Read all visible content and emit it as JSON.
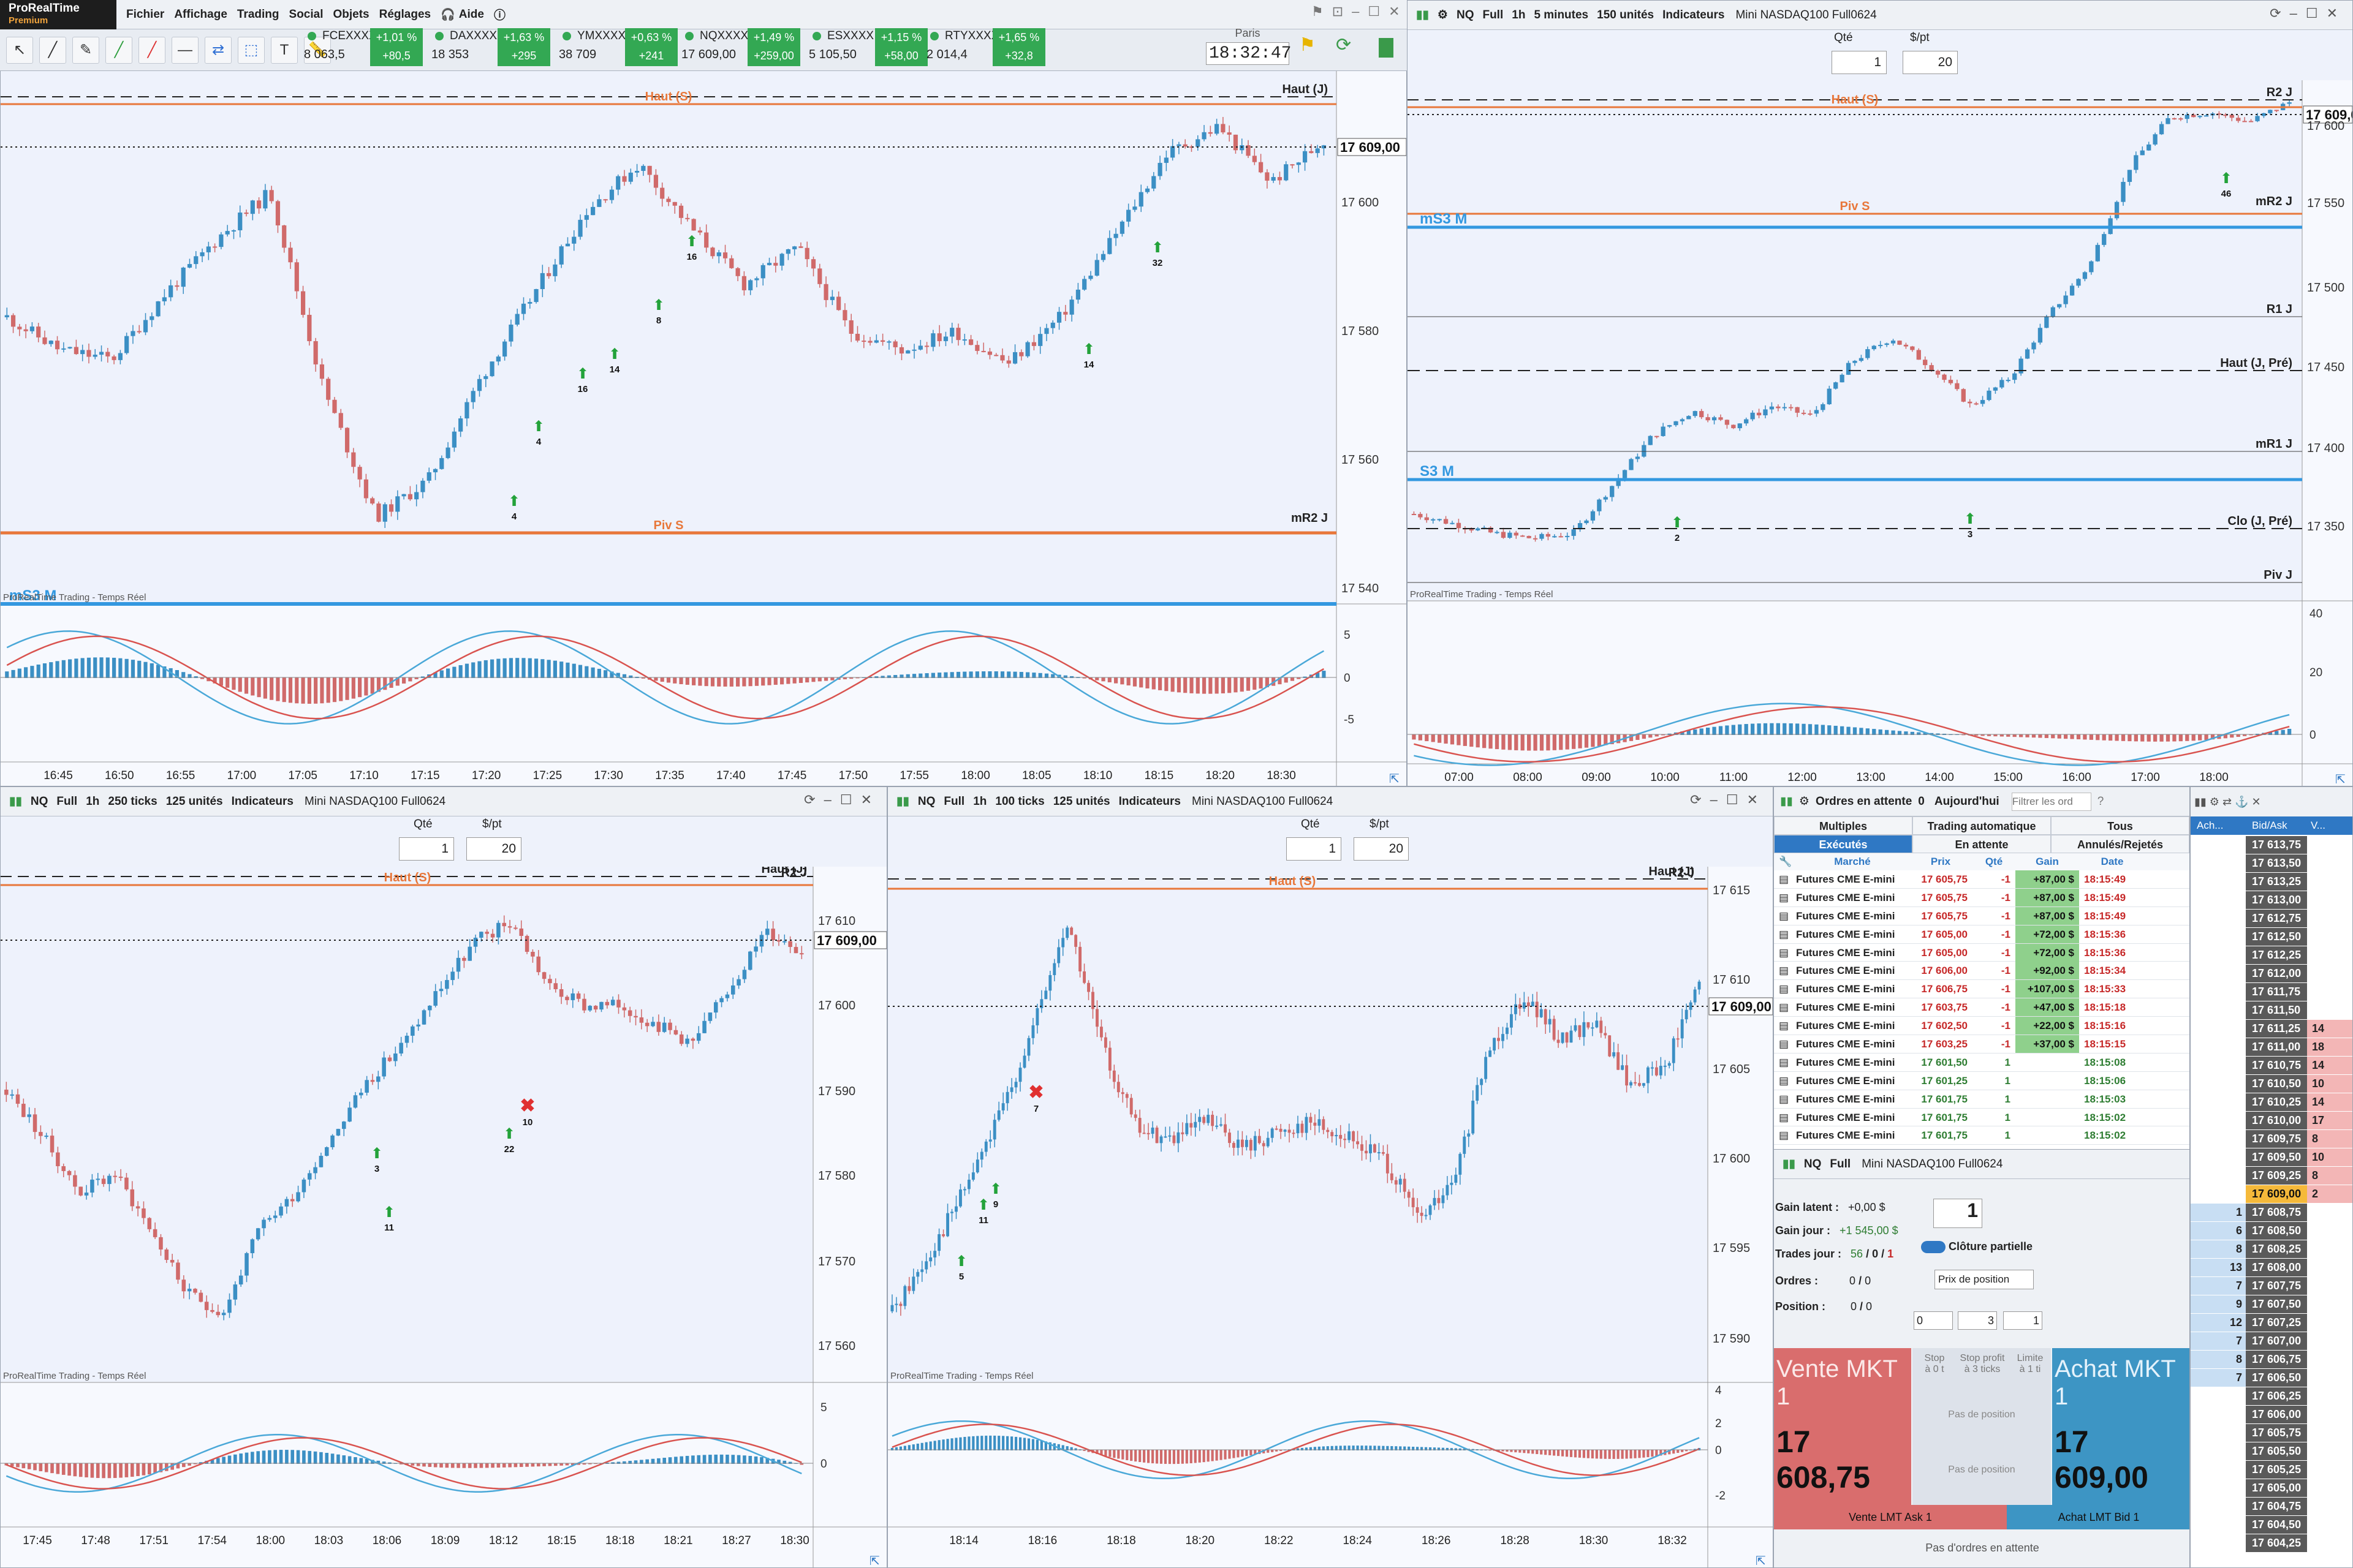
{
  "app": {
    "name": "ProRealTime",
    "edition": "Premium"
  },
  "menu": [
    "Fichier",
    "Affichage",
    "Trading",
    "Social",
    "Objets",
    "Réglages",
    "Aide"
  ],
  "tickers": [
    {
      "name": "FCEXXXX",
      "price": "8 063,5",
      "pct": "+1,01 %",
      "chg": "+80,5"
    },
    {
      "name": "DAXXXXX",
      "price": "18 353",
      "pct": "+1,63 %",
      "chg": "+295"
    },
    {
      "name": "YMXXXX",
      "price": "38 709",
      "pct": "+0,63 %",
      "chg": "+241"
    },
    {
      "name": "NQXXXX",
      "price": "17 609,00",
      "pct": "+1,49 %",
      "chg": "+259,00"
    },
    {
      "name": "ESXXXX",
      "price": "5 105,50",
      "pct": "+1,15 %",
      "chg": "+58,00"
    },
    {
      "name": "RTYXXXX",
      "price": "2 014,4",
      "pct": "+1,65 %",
      "chg": "+32,8"
    }
  ],
  "clock": {
    "city": "Paris",
    "time": "18:32:47"
  },
  "colors": {
    "up": "#3b8fc4",
    "down": "#d06a6a",
    "orange": "#e8773a",
    "blue_level": "#3398e0",
    "gain_bg": "#8fd08c"
  },
  "common": {
    "qty_label": "Qté",
    "pt_label": "$/pt",
    "qty": "1",
    "pt": "20",
    "indicators": "Indicateurs",
    "symbol": "NQ",
    "full": "Full",
    "h1": "1h",
    "instrument": "Mini NASDAQ100 Full0624",
    "watermark": "ProRealTime Trading - Temps Réel",
    "last_price": "17 609,00",
    "haut_s": "Haut (S)",
    "haut_j": "Haut (J)",
    "r2j": "R2 J"
  },
  "chart_main": {
    "levels": {
      "piv_s": "Piv S",
      "mr2j": "mR2 J",
      "ms3m": "mS3 M"
    },
    "yticks": [
      "17 600",
      "17 580",
      "17 560",
      "17 540"
    ],
    "macd_ticks": [
      "5",
      "0",
      "-5"
    ],
    "xticks": [
      "16:45",
      "16:50",
      "16:55",
      "17:00",
      "17:05",
      "17:10",
      "17:15",
      "17:20",
      "17:25",
      "17:30",
      "17:35",
      "17:40",
      "17:45",
      "17:50",
      "17:55",
      "18:00",
      "18:05",
      "18:10",
      "18:15",
      "18:20",
      "18:30"
    ],
    "markers": [
      "4",
      "4",
      "16",
      "14",
      "8",
      "16",
      "14",
      "32"
    ]
  },
  "chart_right": {
    "header": {
      "interval": "5 minutes",
      "units": "150 unités"
    },
    "levels": {
      "r2j": "R2 J",
      "mr2j": "mR2 J",
      "piv_s": "Piv S",
      "ms3m": "mS3 M",
      "r1j": "R1 J",
      "haut_pre": "Haut (J, Pré)",
      "mr1j": "mR1 J",
      "s3m": "S3 M",
      "clo_pre": "Clo (J, Pré)",
      "piv_j": "Piv J"
    },
    "yticks": [
      "17 600",
      "17 550",
      "17 500",
      "17 450",
      "17 400",
      "17 350"
    ],
    "macd_ticks": [
      "40",
      "20",
      "0"
    ],
    "xticks": [
      "07:00",
      "08:00",
      "09:00",
      "10:00",
      "11:00",
      "12:00",
      "13:00",
      "14:00",
      "15:00",
      "16:00",
      "17:00",
      "18:00"
    ],
    "markers": [
      "2",
      "3",
      "46"
    ]
  },
  "chart_bl": {
    "header": {
      "ticks": "250 ticks",
      "units": "125 unités"
    },
    "yticks": [
      "17 610",
      "17 600",
      "17 590",
      "17 580",
      "17 570",
      "17 560"
    ],
    "macd_ticks": [
      "5",
      "0"
    ],
    "xticks": [
      "17:45",
      "17:48",
      "17:51",
      "17:54",
      "18:00",
      "18:03",
      "18:06",
      "18:09",
      "18:12",
      "18:15",
      "18:18",
      "18:21",
      "18:27",
      "18:30"
    ],
    "markers": [
      "3",
      "11",
      "22",
      "10"
    ]
  },
  "chart_bm": {
    "header": {
      "ticks": "100 ticks",
      "units": "125 unités"
    },
    "yticks": [
      "17 615",
      "17 610",
      "17 605",
      "17 600",
      "17 595",
      "17 590"
    ],
    "macd_ticks": [
      "4",
      "2",
      "0",
      "-2"
    ],
    "xticks": [
      "18:14",
      "18:16",
      "18:18",
      "18:20",
      "18:22",
      "18:24",
      "18:26",
      "18:28",
      "18:30",
      "18:32"
    ],
    "markers": [
      "5",
      "11",
      "9",
      "7"
    ]
  },
  "orders": {
    "title": "Ordres en attente",
    "pending_count": "0",
    "filter": "Aujourd'hui",
    "search_placeholder": "Filtrer les ord",
    "tabs_top": [
      "Multiples",
      "Trading automatique",
      "Tous"
    ],
    "tabs": [
      "Exécutés",
      "En attente",
      "Annulés/Rejetés"
    ],
    "columns": [
      "Marché",
      "Prix",
      "Qté",
      "Gain",
      "Date"
    ],
    "rows": [
      {
        "m": "Futures CME E-mini",
        "p": "17 605,75",
        "q": "-1",
        "g": "+87,00 $",
        "d": "18:15:49"
      },
      {
        "m": "Futures CME E-mini",
        "p": "17 605,75",
        "q": "-1",
        "g": "+87,00 $",
        "d": "18:15:49"
      },
      {
        "m": "Futures CME E-mini",
        "p": "17 605,75",
        "q": "-1",
        "g": "+87,00 $",
        "d": "18:15:49"
      },
      {
        "m": "Futures CME E-mini",
        "p": "17 605,00",
        "q": "-1",
        "g": "+72,00 $",
        "d": "18:15:36"
      },
      {
        "m": "Futures CME E-mini",
        "p": "17 605,00",
        "q": "-1",
        "g": "+72,00 $",
        "d": "18:15:36"
      },
      {
        "m": "Futures CME E-mini",
        "p": "17 606,00",
        "q": "-1",
        "g": "+92,00 $",
        "d": "18:15:34"
      },
      {
        "m": "Futures CME E-mini",
        "p": "17 606,75",
        "q": "-1",
        "g": "+107,00 $",
        "d": "18:15:33"
      },
      {
        "m": "Futures CME E-mini",
        "p": "17 603,75",
        "q": "-1",
        "g": "+47,00 $",
        "d": "18:15:18"
      },
      {
        "m": "Futures CME E-mini",
        "p": "17 602,50",
        "q": "-1",
        "g": "+22,00 $",
        "d": "18:15:16"
      },
      {
        "m": "Futures CME E-mini",
        "p": "17 603,25",
        "q": "-1",
        "g": "+37,00 $",
        "d": "18:15:15"
      },
      {
        "m": "Futures CME E-mini",
        "p": "17 601,50",
        "q": "1",
        "g": "",
        "d": "18:15:08"
      },
      {
        "m": "Futures CME E-mini",
        "p": "17 601,25",
        "q": "1",
        "g": "",
        "d": "18:15:06"
      },
      {
        "m": "Futures CME E-mini",
        "p": "17 601,75",
        "q": "1",
        "g": "",
        "d": "18:15:03"
      },
      {
        "m": "Futures CME E-mini",
        "p": "17 601,75",
        "q": "1",
        "g": "",
        "d": "18:15:02"
      },
      {
        "m": "Futures CME E-mini",
        "p": "17 601,75",
        "q": "1",
        "g": "",
        "d": "18:15:02"
      }
    ]
  },
  "trade": {
    "gain_latent_label": "Gain latent :",
    "gain_latent": "+0,00 $",
    "gain_jour_label": "Gain jour :",
    "gain_jour": "+1 545,00 $",
    "trades_label": "Trades jour :",
    "trades_a": "56",
    "trades_b": "0",
    "trades_c": "1",
    "ordres_label": "Ordres :",
    "ordres": "0",
    "ordres_b": "0",
    "position_label": "Position :",
    "position": "0",
    "position_b": "0",
    "qty": "1",
    "cloture": "Clôture partielle",
    "prix_pos": "Prix de position",
    "vals": [
      "0",
      "3",
      "1"
    ],
    "sell_label": "Vente MKT 1",
    "sell_price": "17 608,75",
    "buy_label": "Achat MKT 1",
    "buy_price": "17 609,00",
    "stop": "Stop",
    "stop_sub": "à 0 t",
    "stop_profit": "Stop profit",
    "stop_profit_sub": "à 3 ticks",
    "limite": "Limite",
    "limite_sub": "à 1 ti",
    "no_position": "Pas de position",
    "sell_lmt": "Vente LMT Ask 1",
    "buy_lmt": "Achat LMT Bid 1",
    "no_orders": "Pas d'ordres en attente"
  },
  "book": {
    "headers": [
      "Ach...",
      "Bid/Ask",
      "V..."
    ],
    "asks": [
      [
        "",
        "17 613,75",
        ""
      ],
      [
        "",
        "17 613,50",
        ""
      ],
      [
        "",
        "17 613,25",
        ""
      ],
      [
        "",
        "17 613,00",
        ""
      ],
      [
        "",
        "17 612,75",
        ""
      ],
      [
        "",
        "17 612,50",
        ""
      ],
      [
        "",
        "17 612,25",
        ""
      ],
      [
        "",
        "17 612,00",
        ""
      ],
      [
        "",
        "17 611,75",
        ""
      ],
      [
        "",
        "17 611,50",
        ""
      ],
      [
        "",
        "17 611,25",
        "14"
      ],
      [
        "",
        "17 611,00",
        "18"
      ],
      [
        "",
        "17 610,75",
        "14"
      ],
      [
        "",
        "17 610,50",
        "10"
      ],
      [
        "",
        "17 610,25",
        "14"
      ],
      [
        "",
        "17 610,00",
        "17"
      ],
      [
        "",
        "17 609,75",
        "8"
      ],
      [
        "",
        "17 609,50",
        "10"
      ],
      [
        "",
        "17 609,25",
        "8"
      ],
      [
        "",
        "17 609,00",
        "2"
      ]
    ],
    "bids": [
      [
        "1",
        "17 608,75",
        ""
      ],
      [
        "6",
        "17 608,50",
        ""
      ],
      [
        "8",
        "17 608,25",
        ""
      ],
      [
        "13",
        "17 608,00",
        ""
      ],
      [
        "7",
        "17 607,75",
        ""
      ],
      [
        "9",
        "17 607,50",
        ""
      ],
      [
        "12",
        "17 607,25",
        ""
      ],
      [
        "7",
        "17 607,00",
        ""
      ],
      [
        "8",
        "17 606,75",
        ""
      ],
      [
        "7",
        "17 606,50",
        ""
      ],
      [
        "",
        "17 606,25",
        ""
      ],
      [
        "",
        "17 606,00",
        ""
      ],
      [
        "",
        "17 605,75",
        ""
      ],
      [
        "",
        "17 605,50",
        ""
      ],
      [
        "",
        "17 605,25",
        ""
      ],
      [
        "",
        "17 605,00",
        ""
      ],
      [
        "",
        "17 604,75",
        ""
      ],
      [
        "",
        "17 604,50",
        ""
      ],
      [
        "",
        "17 604,25",
        ""
      ]
    ]
  }
}
